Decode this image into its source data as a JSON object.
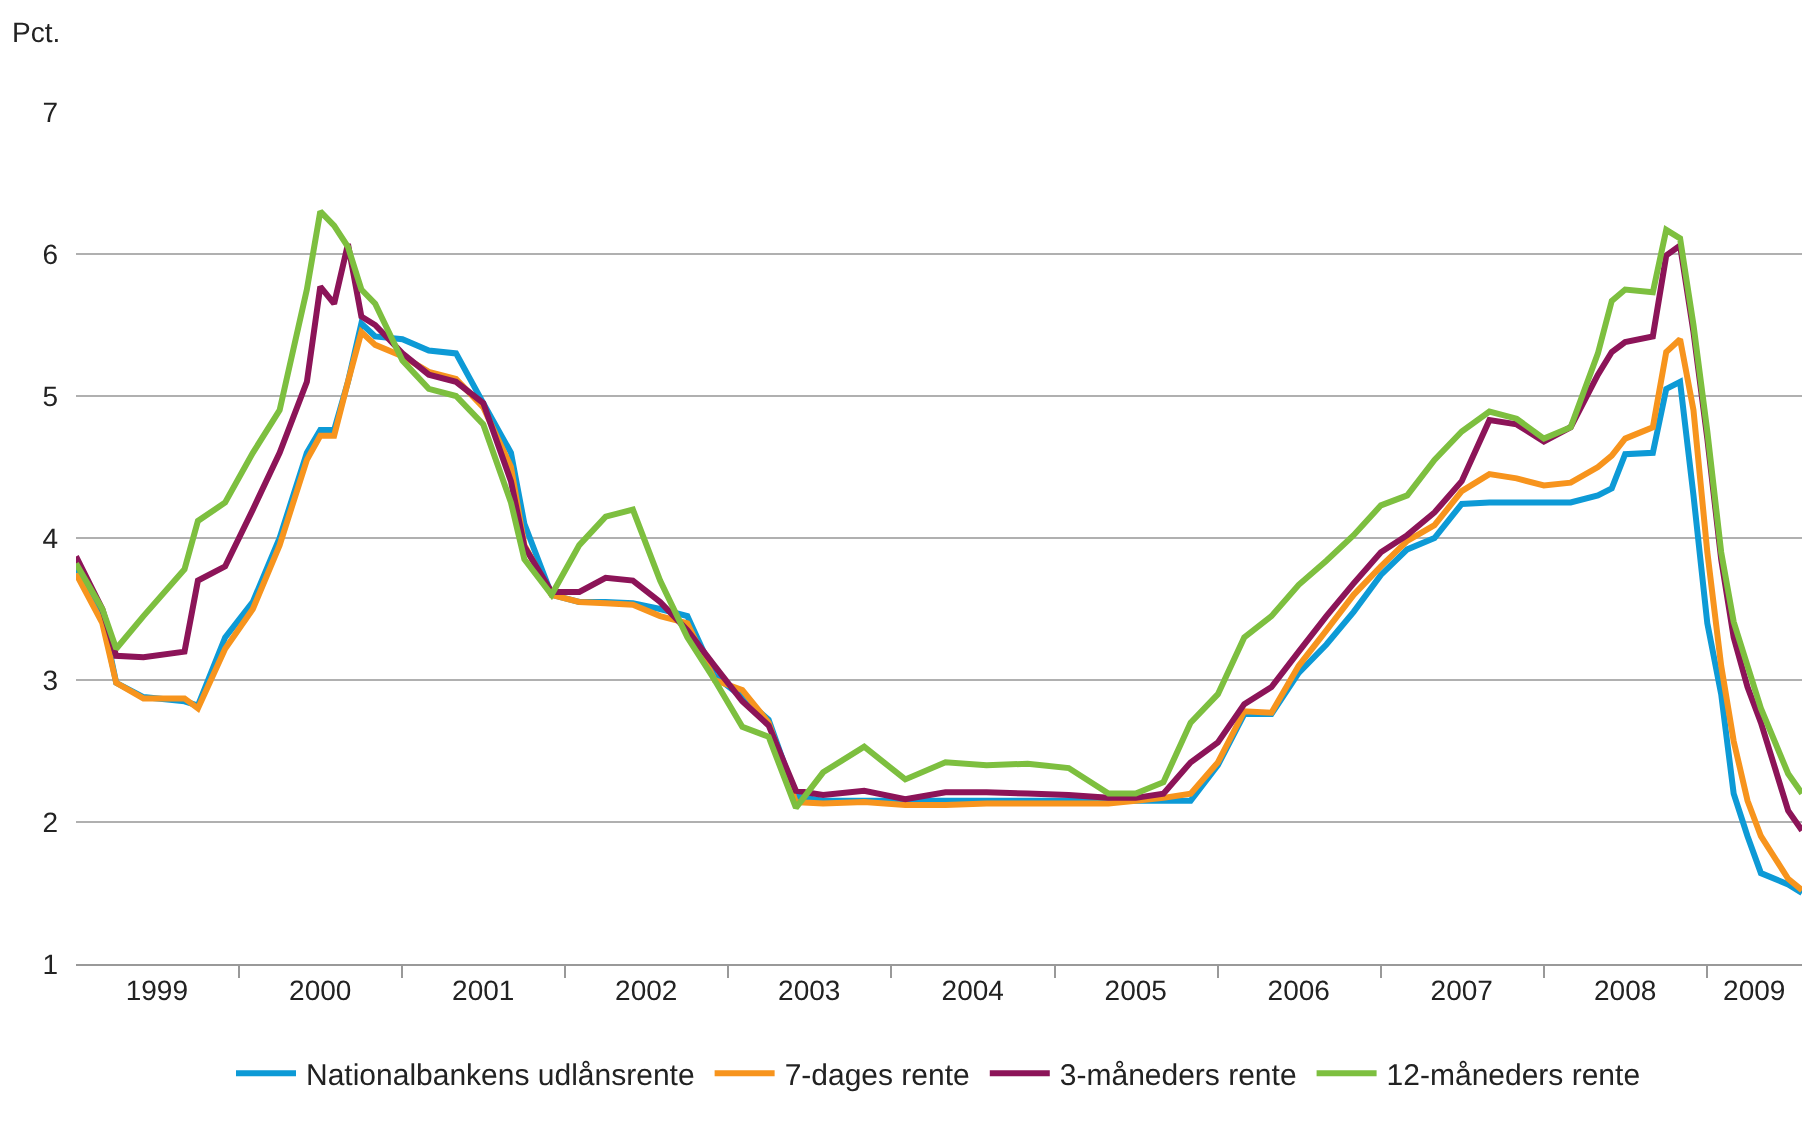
{
  "chart_data": {
    "type": "line",
    "ylabel": "Pct.",
    "x": [
      "1999-01",
      "1999-03",
      "1999-04",
      "1999-06",
      "1999-09",
      "1999-10",
      "1999-12",
      "2000-02",
      "2000-04",
      "2000-06",
      "2000-07",
      "2000-08",
      "2000-09",
      "2000-10",
      "2000-11",
      "2001-01",
      "2001-03",
      "2001-05",
      "2001-07",
      "2001-09",
      "2001-10",
      "2001-12",
      "2002-02",
      "2002-04",
      "2002-06",
      "2002-08",
      "2002-10",
      "2002-12",
      "2003-02",
      "2003-04",
      "2003-06",
      "2003-08",
      "2003-11",
      "2004-02",
      "2004-05",
      "2004-08",
      "2004-11",
      "2005-02",
      "2005-05",
      "2005-07",
      "2005-09",
      "2005-11",
      "2006-01",
      "2006-03",
      "2006-05",
      "2006-07",
      "2006-09",
      "2006-11",
      "2007-01",
      "2007-03",
      "2007-05",
      "2007-07",
      "2007-09",
      "2007-11",
      "2008-01",
      "2008-03",
      "2008-05",
      "2008-06",
      "2008-07",
      "2008-09",
      "2008-10",
      "2008-11",
      "2008-12",
      "2009-01",
      "2009-02",
      "2009-03",
      "2009-04",
      "2009-05",
      "2009-07",
      "2009-08"
    ],
    "series": [
      {
        "name": "Nationalbankens udlånsrente",
        "color": "#0d9ad6",
        "values": [
          3.8,
          3.45,
          2.98,
          2.88,
          2.85,
          2.82,
          3.3,
          3.55,
          4.0,
          4.6,
          4.76,
          4.76,
          5.1,
          5.51,
          5.42,
          5.4,
          5.32,
          5.3,
          4.95,
          4.6,
          4.1,
          3.6,
          3.55,
          3.55,
          3.54,
          3.5,
          3.45,
          3.03,
          2.88,
          2.72,
          2.18,
          2.15,
          2.15,
          2.15,
          2.15,
          2.15,
          2.15,
          2.15,
          2.15,
          2.15,
          2.15,
          2.15,
          2.4,
          2.76,
          2.76,
          3.05,
          3.25,
          3.48,
          3.74,
          3.92,
          4.0,
          4.24,
          4.25,
          4.25,
          4.25,
          4.25,
          4.3,
          4.35,
          4.59,
          4.6,
          5.05,
          5.1,
          4.3,
          3.4,
          2.9,
          2.2,
          1.9,
          1.64,
          1.56,
          1.5
        ]
      },
      {
        "name": "7-dages rente",
        "color": "#f7941d",
        "values": [
          3.75,
          3.4,
          2.98,
          2.87,
          2.87,
          2.8,
          3.22,
          3.5,
          3.95,
          4.55,
          4.72,
          4.72,
          5.1,
          5.45,
          5.36,
          5.28,
          5.17,
          5.12,
          4.92,
          4.5,
          3.95,
          3.6,
          3.55,
          3.54,
          3.53,
          3.45,
          3.4,
          3.0,
          2.93,
          2.7,
          2.14,
          2.13,
          2.14,
          2.12,
          2.12,
          2.13,
          2.13,
          2.13,
          2.13,
          2.15,
          2.17,
          2.2,
          2.42,
          2.78,
          2.77,
          3.1,
          3.35,
          3.6,
          3.8,
          3.98,
          4.09,
          4.33,
          4.45,
          4.42,
          4.37,
          4.39,
          4.5,
          4.58,
          4.7,
          4.78,
          5.31,
          5.4,
          4.9,
          3.9,
          3.1,
          2.57,
          2.15,
          1.9,
          1.6,
          1.52
        ]
      },
      {
        "name": "3-måneders rente",
        "color": "#8c1458",
        "values": [
          3.87,
          3.5,
          3.17,
          3.16,
          3.2,
          3.7,
          3.8,
          4.2,
          4.6,
          5.1,
          5.77,
          5.65,
          6.07,
          5.56,
          5.5,
          5.3,
          5.15,
          5.1,
          4.95,
          4.4,
          3.94,
          3.62,
          3.62,
          3.72,
          3.7,
          3.55,
          3.35,
          3.1,
          2.85,
          2.68,
          2.22,
          2.19,
          2.22,
          2.16,
          2.21,
          2.21,
          2.2,
          2.19,
          2.17,
          2.17,
          2.2,
          2.42,
          2.56,
          2.83,
          2.95,
          3.2,
          3.45,
          3.68,
          3.9,
          4.02,
          4.18,
          4.4,
          4.83,
          4.8,
          4.68,
          4.78,
          5.15,
          5.31,
          5.38,
          5.42,
          5.99,
          6.06,
          5.45,
          4.7,
          3.85,
          3.3,
          2.95,
          2.7,
          2.08,
          1.94
        ]
      },
      {
        "name": "12-måneders rente",
        "color": "#7dbf3f",
        "values": [
          3.82,
          3.5,
          3.22,
          3.45,
          3.78,
          4.12,
          4.25,
          4.6,
          4.9,
          5.75,
          6.3,
          6.2,
          6.05,
          5.75,
          5.65,
          5.25,
          5.05,
          5.0,
          4.8,
          4.25,
          3.85,
          3.6,
          3.95,
          4.15,
          4.2,
          3.7,
          3.3,
          3.0,
          2.67,
          2.6,
          2.1,
          2.35,
          2.53,
          2.3,
          2.42,
          2.4,
          2.41,
          2.38,
          2.2,
          2.2,
          2.28,
          2.7,
          2.9,
          3.3,
          3.45,
          3.67,
          3.84,
          4.02,
          4.23,
          4.3,
          4.55,
          4.75,
          4.89,
          4.84,
          4.7,
          4.78,
          5.3,
          5.67,
          5.75,
          5.73,
          6.17,
          6.11,
          5.5,
          4.75,
          3.9,
          3.41,
          3.1,
          2.8,
          2.34,
          2.2
        ]
      }
    ],
    "xlim": [
      "1999-01",
      "2009-08"
    ],
    "xticks": [
      {
        "value": "1999-07",
        "label": "1999"
      },
      {
        "value": "2000-07",
        "label": "2000"
      },
      {
        "value": "2001-07",
        "label": "2001"
      },
      {
        "value": "2002-07",
        "label": "2002"
      },
      {
        "value": "2003-07",
        "label": "2003"
      },
      {
        "value": "2004-07",
        "label": "2004"
      },
      {
        "value": "2005-07",
        "label": "2005"
      },
      {
        "value": "2006-07",
        "label": "2006"
      },
      {
        "value": "2007-07",
        "label": "2007"
      },
      {
        "value": "2008-07",
        "label": "2008"
      },
      {
        "value": "2009-04-16",
        "label": "2009"
      },
      {
        "value": "2000-01",
        "label": null
      },
      {
        "value": "2001-01",
        "label": null
      },
      {
        "value": "2002-01",
        "label": null
      },
      {
        "value": "2003-01",
        "label": null
      },
      {
        "value": "2004-01",
        "label": null
      },
      {
        "value": "2005-01",
        "label": null
      },
      {
        "value": "2006-01",
        "label": null
      },
      {
        "value": "2007-01",
        "label": null
      },
      {
        "value": "2008-01",
        "label": null
      },
      {
        "value": "2009-01",
        "label": null
      }
    ],
    "ylim": [
      1,
      7
    ],
    "yticks": [
      1,
      2,
      3,
      4,
      5,
      6,
      7
    ],
    "grid": "y",
    "legend": "bottom",
    "marker": "none",
    "line_style": "solid"
  }
}
